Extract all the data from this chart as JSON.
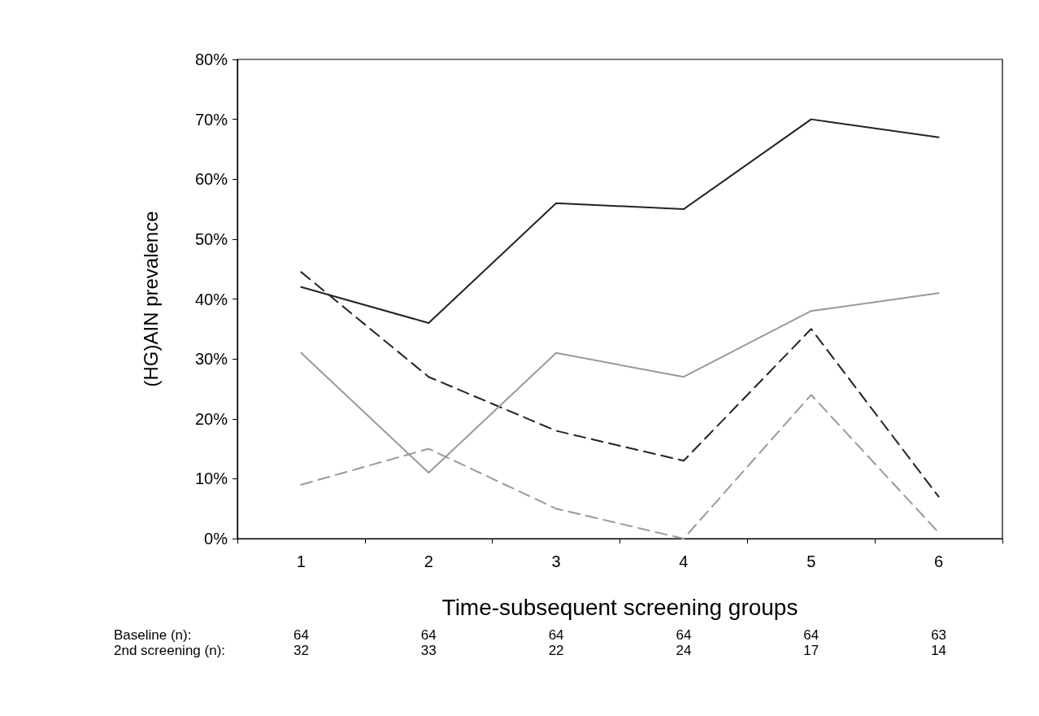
{
  "chart_data": {
    "type": "line",
    "xlabel": "Time-subsequent screening groups",
    "ylabel": "(HG)AIN prevalence",
    "categories": [
      "1",
      "2",
      "3",
      "4",
      "5",
      "6"
    ],
    "series": [
      {
        "color": "#222222",
        "line_style": "solid",
        "values": [
          42,
          36,
          56,
          55,
          70,
          67
        ]
      },
      {
        "color": "#222222",
        "line_style": "dashed",
        "values": [
          44.5,
          27,
          18,
          13,
          35,
          7
        ]
      },
      {
        "color": "#999999",
        "line_style": "solid",
        "values": [
          31,
          11,
          31,
          27,
          38,
          41
        ]
      },
      {
        "color": "#999999",
        "line_style": "dashed",
        "values": [
          9,
          15,
          5,
          0,
          24,
          1
        ]
      }
    ],
    "ylim": [
      0,
      80
    ],
    "yticks": [
      {
        "value": 0,
        "label": "0%"
      },
      {
        "value": 10,
        "label": "10%"
      },
      {
        "value": 20,
        "label": "20%"
      },
      {
        "value": 30,
        "label": "30%"
      },
      {
        "value": 40,
        "label": "40%"
      },
      {
        "value": 50,
        "label": "50%"
      },
      {
        "value": 60,
        "label": "60%"
      },
      {
        "value": 70,
        "label": "70%"
      },
      {
        "value": 80,
        "label": "80%"
      }
    ],
    "grid": false,
    "marker": "none",
    "annotations": [
      "Baseline (n):",
      "64",
      "64",
      "64",
      "64",
      "64",
      "63",
      "2nd screening (n):",
      "32",
      "33",
      "22",
      "24",
      "17",
      "14"
    ]
  }
}
